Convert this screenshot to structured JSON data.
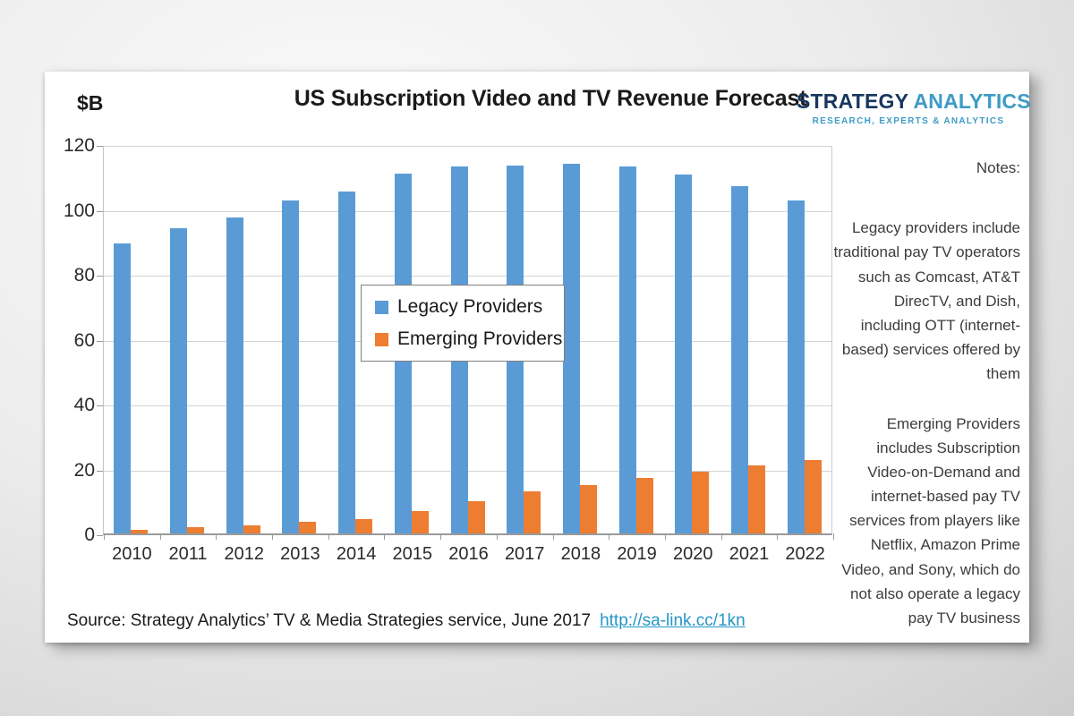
{
  "chart_data": {
    "type": "bar",
    "title": "US Subscription Video and TV Revenue Forecast",
    "unit_label": "$B",
    "categories": [
      "2010",
      "2011",
      "2012",
      "2013",
      "2014",
      "2015",
      "2016",
      "2017",
      "2018",
      "2019",
      "2020",
      "2021",
      "2022"
    ],
    "series": [
      {
        "name": "Legacy Providers",
        "color": "#5B9BD5",
        "values": [
          89.5,
          94,
          97.5,
          102.5,
          105.5,
          111,
          113,
          113.5,
          114,
          113,
          110.5,
          107,
          102.5
        ]
      },
      {
        "name": "Emerging Providers",
        "color": "#ED7D31",
        "values": [
          1,
          2,
          2.5,
          3.5,
          4.5,
          7,
          10,
          13,
          15,
          17,
          19,
          21,
          22.5
        ]
      }
    ],
    "ylim": [
      0,
      120
    ],
    "ytick_step": 20,
    "grid": true,
    "legend_position": "inside-left-center"
  },
  "logo": {
    "word1": "STRATEGY",
    "word2": " ANALYTICS",
    "tagline": "RESEARCH, EXPERTS & ANALYTICS",
    "word1_color": "#17365d",
    "word2_color": "#3d9bc6",
    "tagline_color": "#3d9bc6"
  },
  "notes": {
    "heading": "Notes:",
    "paragraphs": [
      "Legacy providers include traditional pay TV operators such as Comcast, AT&T DirecTV, and Dish, including OTT (internet-based) services offered by them",
      "Emerging Providers includes Subscription Video-on-Demand and internet-based pay TV services from players like Netflix, Amazon Prime Video, and Sony, which do not also operate a legacy pay TV business"
    ]
  },
  "source": {
    "text": "Source: Strategy Analytics’ TV & Media Strategies service, June 2017",
    "link": "http://sa-link.cc/1kn",
    "link_color": "#2496c8"
  }
}
